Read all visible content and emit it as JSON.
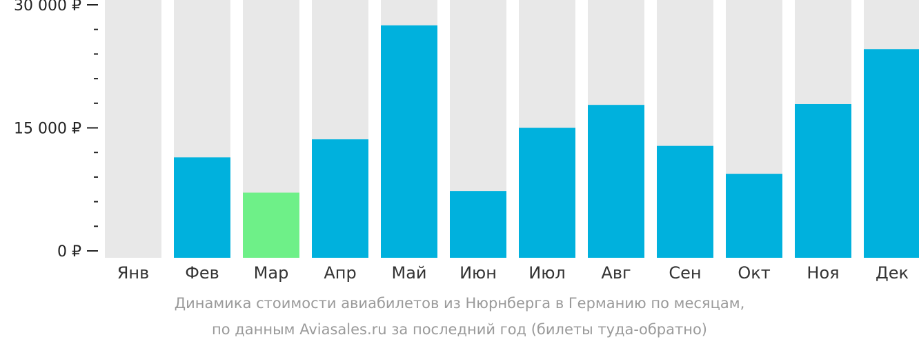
{
  "chart_data": {
    "type": "bar",
    "categories": [
      "Янв",
      "Фев",
      "Мар",
      "Апр",
      "Май",
      "Июн",
      "Июл",
      "Авг",
      "Сен",
      "Окт",
      "Ноя",
      "Дек"
    ],
    "values": [
      0,
      11400,
      7100,
      13600,
      27500,
      7300,
      15000,
      17800,
      12800,
      9400,
      17900,
      24600
    ],
    "highlight_category": "Мар",
    "ylim": [
      0,
      30000
    ],
    "y_ticks": [
      {
        "value": 0,
        "label": "0 ₽"
      },
      {
        "value": 15000,
        "label": "15 000 ₽"
      },
      {
        "value": 30000,
        "label": "30 000 ₽"
      }
    ],
    "y_minor_tick_step": 3000,
    "colors": {
      "bar": "#00b1dd",
      "highlight": "#6ef088",
      "track": "#e8e8e8",
      "axis": "#222222"
    },
    "grid": false,
    "legend": "none"
  },
  "caption": {
    "line1": "Динамика стоимости авиабилетов из Нюрнберга в Германию по месяцам,",
    "line2": "по данным Aviasales.ru за последний год (билеты туда-обратно)"
  }
}
